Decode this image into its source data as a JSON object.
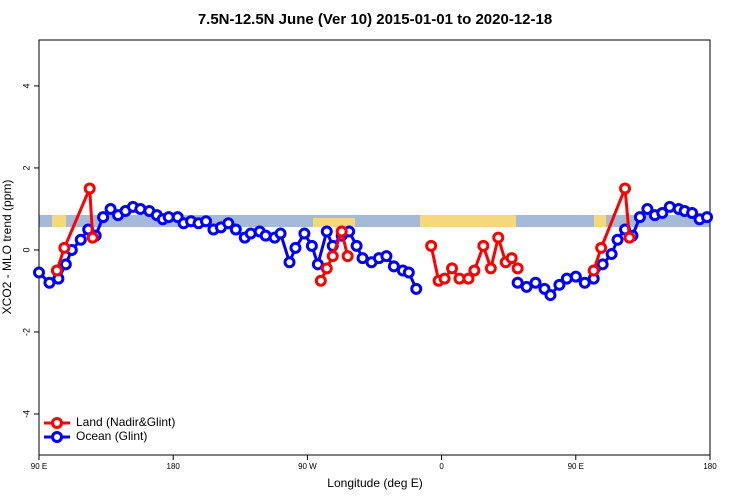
{
  "chart_data": {
    "type": "line",
    "title": "7.5N-12.5N June (Ver 10)   2015-01-01 to 2020-12-18",
    "x_label": "Longitude (deg E)",
    "y_label": "XCO2 - MLO trend (ppm)",
    "xlim": [
      90,
      540
    ],
    "xticks": [
      {
        "value": 90,
        "label": "90 E"
      },
      180,
      {
        "value": 270,
        "label": "90 W"
      },
      {
        "value": 360,
        "label": "0"
      },
      {
        "value": 450,
        "label": "90 E"
      },
      {
        "value": 540,
        "label": "180"
      }
    ],
    "ylim": [
      -5,
      5.12
    ],
    "yticks": [
      -4,
      -2,
      0,
      2,
      4
    ],
    "legend": "bottom-left",
    "series": [
      {
        "name": "Ocean (Glint)",
        "color": "#0000ff",
        "x": [
          90,
          97,
          103,
          108,
          112,
          118,
          123,
          128,
          133,
          138,
          143,
          148,
          153,
          158,
          164,
          169,
          173,
          177,
          183,
          187,
          192,
          197,
          202,
          207,
          212,
          217,
          222,
          228,
          232,
          238,
          242,
          248,
          252,
          258,
          262,
          268,
          273,
          277,
          283,
          287,
          293,
          298,
          303,
          307,
          313,
          318,
          323,
          328,
          334,
          338,
          343,
          null,
          411,
          417,
          423,
          429,
          433,
          439,
          444,
          450,
          456,
          462,
          468,
          474,
          478,
          483,
          488,
          493,
          498,
          503,
          508,
          513,
          519,
          523,
          528,
          533,
          538
        ],
        "values": [
          -0.55,
          -0.8,
          -0.7,
          -0.35,
          0,
          0.25,
          0.5,
          0.35,
          0.8,
          1.0,
          0.85,
          0.95,
          1.05,
          1.0,
          0.95,
          0.85,
          0.75,
          0.8,
          0.8,
          0.65,
          0.7,
          0.65,
          0.7,
          0.5,
          0.55,
          0.65,
          0.5,
          0.3,
          0.4,
          0.45,
          0.35,
          0.3,
          0.4,
          -0.3,
          0.05,
          0.4,
          0.1,
          -0.35,
          0.45,
          0.1,
          0.35,
          0.45,
          0.1,
          -0.2,
          -0.3,
          -0.2,
          -0.15,
          -0.4,
          -0.5,
          -0.55,
          -0.95,
          null,
          -0.8,
          -0.9,
          -0.8,
          -0.95,
          -1.1,
          -0.85,
          -0.7,
          -0.65,
          -0.8,
          -0.7,
          -0.35,
          -0.1,
          0.25,
          0.5,
          0.35,
          0.8,
          1.0,
          0.85,
          0.9,
          1.05,
          1.0,
          0.95,
          0.9,
          0.75,
          0.8
        ]
      },
      {
        "name": "Land (Nadir&Glint)",
        "color": "#ff0000",
        "x": [
          102,
          107,
          124,
          126,
          null,
          279,
          283,
          287,
          293,
          297,
          null,
          353,
          358,
          362,
          367,
          372,
          378,
          382,
          388,
          393,
          398,
          403,
          407,
          411,
          null,
          462,
          467,
          483,
          486
        ],
        "values": [
          -0.5,
          0.05,
          1.5,
          0.3,
          null,
          -0.75,
          -0.45,
          -0.15,
          0.45,
          -0.15,
          null,
          0.1,
          -0.75,
          -0.7,
          -0.45,
          -0.7,
          -0.7,
          -0.5,
          0.1,
          -0.45,
          0.3,
          -0.3,
          -0.2,
          -0.45,
          null,
          -0.5,
          0.05,
          1.5,
          0.3
        ]
      }
    ]
  }
}
